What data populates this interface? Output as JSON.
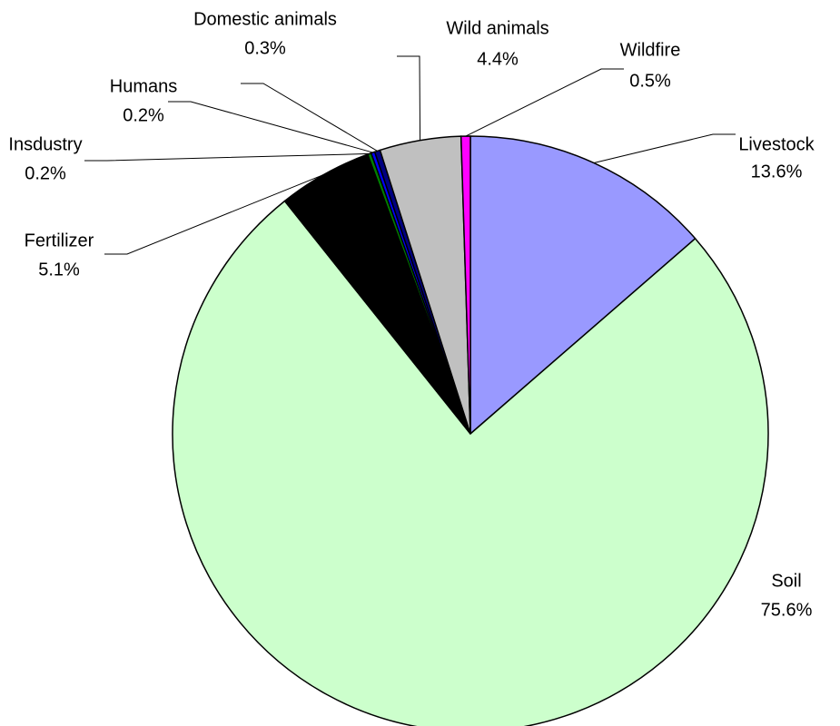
{
  "chart_data": {
    "type": "pie",
    "categories": [
      "Livestock",
      "Soil",
      "Fertilizer",
      "Insdustry",
      "Humans",
      "Domestic animals",
      "Wild animals",
      "Wildfire"
    ],
    "values": [
      13.6,
      75.6,
      5.1,
      0.2,
      0.2,
      0.3,
      4.4,
      0.5
    ],
    "value_labels": [
      "13.6%",
      "75.6%",
      "5.1%",
      "0.2%",
      "0.2%",
      "0.3%",
      "4.4%",
      "0.5%"
    ],
    "colors": [
      "#9999ff",
      "#ccffcc",
      "#000000",
      "#008000",
      "#0000ff",
      "#000080",
      "#c0c0c0",
      "#ff00ff"
    ]
  }
}
